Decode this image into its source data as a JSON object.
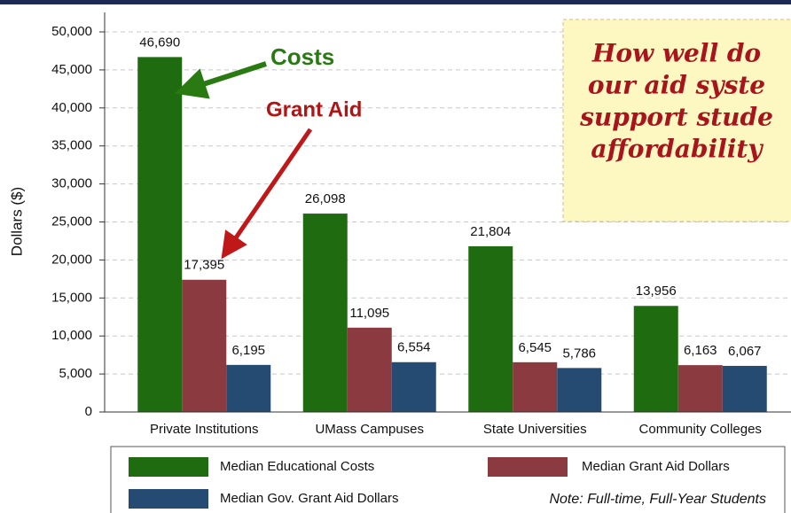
{
  "chart_data": {
    "type": "bar",
    "ylabel": "Dollars ($)",
    "categories": [
      "Private Institutions",
      "UMass Campuses",
      "State Universities",
      "Community Colleges"
    ],
    "series": [
      {
        "name": "Median Educational Costs",
        "color": "#1f6b0f",
        "values": [
          46690,
          26098,
          21804,
          13956
        ],
        "value_labels": [
          "46,690",
          "26,098",
          "21,804",
          "13,956"
        ]
      },
      {
        "name": "Median Grant Aid Dollars",
        "color": "#8b3a40",
        "values": [
          17395,
          11095,
          6545,
          6163
        ],
        "value_labels": [
          "17,395",
          "11,095",
          "6,545",
          "6,163"
        ]
      },
      {
        "name": "Median Gov. Grant Aid Dollars",
        "color": "#264b72",
        "values": [
          6195,
          6554,
          5786,
          6067
        ],
        "value_labels": [
          "6,195",
          "6,554",
          "5,786",
          "6,067"
        ]
      }
    ],
    "ylim": [
      0,
      50000
    ],
    "yticks": [
      0,
      {
        "value": 5000,
        "label": "5,000"
      },
      {
        "value": 10000,
        "label": "10,000"
      },
      {
        "value": 15000,
        "label": "15,000"
      },
      {
        "value": 20000,
        "label": "20,000"
      },
      {
        "value": 25000,
        "label": "25,000"
      },
      {
        "value": 30000,
        "label": "30,000"
      },
      {
        "value": 35000,
        "label": "35,000"
      },
      {
        "value": 40000,
        "label": "40,000"
      },
      {
        "value": 45000,
        "label": "45,000"
      },
      {
        "value": 50000,
        "label": "50,000"
      }
    ],
    "grid": true,
    "annotations": [
      "Costs",
      "Grant Aid"
    ],
    "callout": [
      "How well do",
      "our aid syste",
      "support stude",
      "affordability"
    ],
    "note": "Note: Full-time, Full-Year Students"
  }
}
